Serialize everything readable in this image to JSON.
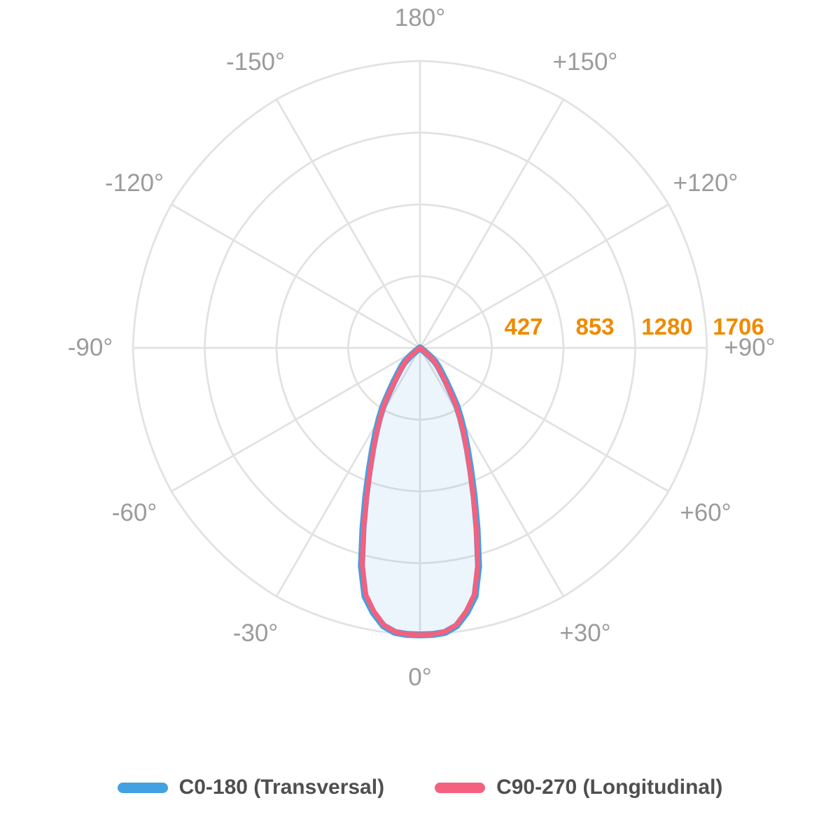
{
  "colors": {
    "background": "#ffffff",
    "grid": "#e2e2e2",
    "angle_label": "#9b9b9b",
    "radial_label": "#ef8a00",
    "legend_text": "#4f4f4f"
  },
  "chart_data": {
    "type": "polar",
    "subtype": "photometric-luminous-intensity-distribution",
    "units": "cd",
    "orientation": {
      "zero_angle": "bottom",
      "positive_direction": "right"
    },
    "radial_max": 1706,
    "radial_ticks": [
      427,
      853,
      1280,
      1706
    ],
    "angle_tick_labels": [
      {
        "text": "180°",
        "deg": 180
      },
      {
        "text": "-150°",
        "deg": -150
      },
      {
        "text": "+150°",
        "deg": 150
      },
      {
        "text": "-120°",
        "deg": -120
      },
      {
        "text": "+120°",
        "deg": 120
      },
      {
        "text": "-90°",
        "deg": -90
      },
      {
        "text": "+90°",
        "deg": 90
      },
      {
        "text": "-60°",
        "deg": -60
      },
      {
        "text": "+60°",
        "deg": 60
      },
      {
        "text": "-30°",
        "deg": -30
      },
      {
        "text": "+30°",
        "deg": 30
      },
      {
        "text": "0°",
        "deg": 0
      }
    ],
    "symmetric_about_vertical": true,
    "angles_deg": [
      0,
      2.5,
      5,
      7.5,
      10,
      12.5,
      15,
      17.5,
      20,
      22.5,
      25,
      27.5,
      30,
      32.5,
      35,
      37.5,
      40,
      42.5,
      45,
      47.5,
      50,
      52.5,
      55,
      57.5,
      60,
      90,
      120,
      150,
      180
    ],
    "series": [
      {
        "name": "C0-180 (Transversal)",
        "color": "#42a1e2",
        "fill": "rgba(66, 161, 226, 0.10)",
        "line_width": 10,
        "values": [
          1706,
          1705,
          1698,
          1666,
          1598,
          1512,
          1345,
          1128,
          942,
          788,
          668,
          568,
          483,
          405,
          318,
          256,
          210,
          174,
          148,
          120,
          72,
          28,
          10,
          2,
          0,
          0,
          0,
          0,
          0
        ]
      },
      {
        "name": "C90-270 (Longitudinal)",
        "color": "#f4617e",
        "fill": "none",
        "line_width": 7,
        "values": [
          1706,
          1704,
          1694,
          1660,
          1588,
          1498,
          1328,
          1110,
          920,
          768,
          650,
          552,
          466,
          390,
          302,
          240,
          194,
          158,
          134,
          108,
          62,
          22,
          6,
          1,
          0,
          0,
          0,
          0,
          0
        ]
      }
    ]
  }
}
